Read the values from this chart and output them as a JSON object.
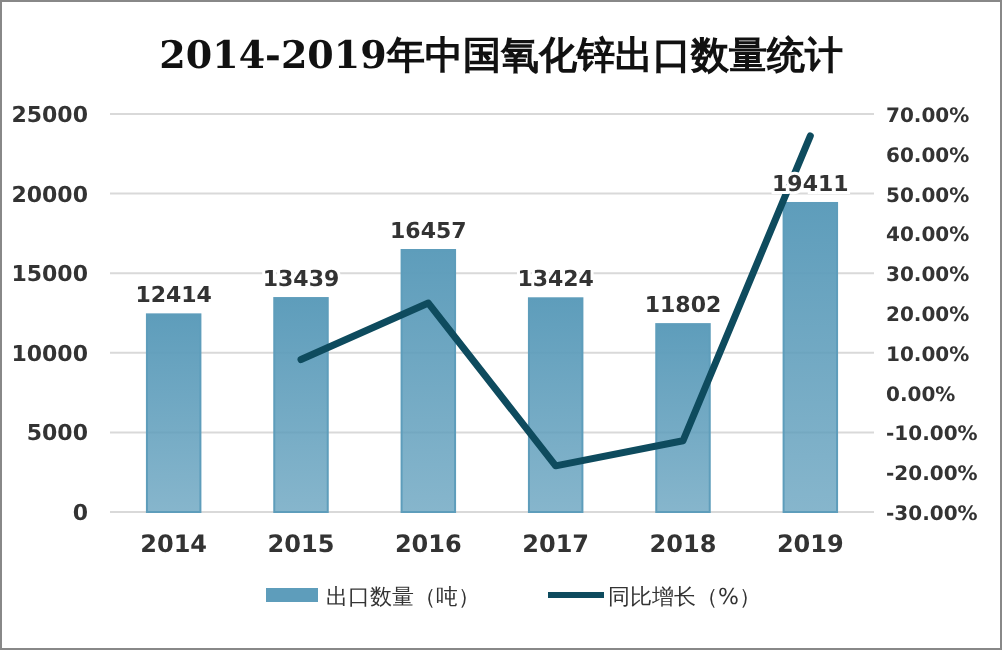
{
  "chart_data": {
    "type": "bar",
    "title": "2014-2019年中国氧化锌出口数量统计",
    "categories": [
      "2014",
      "2015",
      "2016",
      "2017",
      "2018",
      "2019"
    ],
    "series": [
      {
        "name": "出口数量（吨）",
        "color": "#5e9dbb",
        "values": [
          12414,
          13439,
          16457,
          13424,
          11802,
          19411
        ],
        "value_labels": [
          "12414",
          "13439",
          "16457",
          "13424",
          "11802",
          "19411"
        ]
      },
      {
        "name": "同比增长（%）",
        "type": "line",
        "axis": "y2",
        "color": "#0e4b5e",
        "values": [
          null,
          8.3,
          22.5,
          -18.4,
          -12.1,
          64.5
        ]
      }
    ],
    "ylim": [
      0,
      25000
    ],
    "yticks": [
      0,
      5000,
      10000,
      15000,
      20000,
      25000
    ],
    "y2lim": [
      -30,
      70
    ],
    "y2ticks": [
      {
        "value": -30,
        "label": "-30.00%"
      },
      {
        "value": -20,
        "label": "-20.00%"
      },
      {
        "value": -10,
        "label": "-10.00%"
      },
      {
        "value": 0,
        "label": "0.00%"
      },
      {
        "value": 10,
        "label": "10.00%"
      },
      {
        "value": 20,
        "label": "20.00%"
      },
      {
        "value": 30,
        "label": "30.00%"
      },
      {
        "value": 40,
        "label": "40.00%"
      },
      {
        "value": 50,
        "label": "50.00%"
      },
      {
        "value": 60,
        "label": "60.00%"
      },
      {
        "value": 70,
        "label": "70.00%"
      }
    ],
    "grid": "y",
    "legend": "bottom",
    "marker": "none",
    "line_style": "solid"
  }
}
